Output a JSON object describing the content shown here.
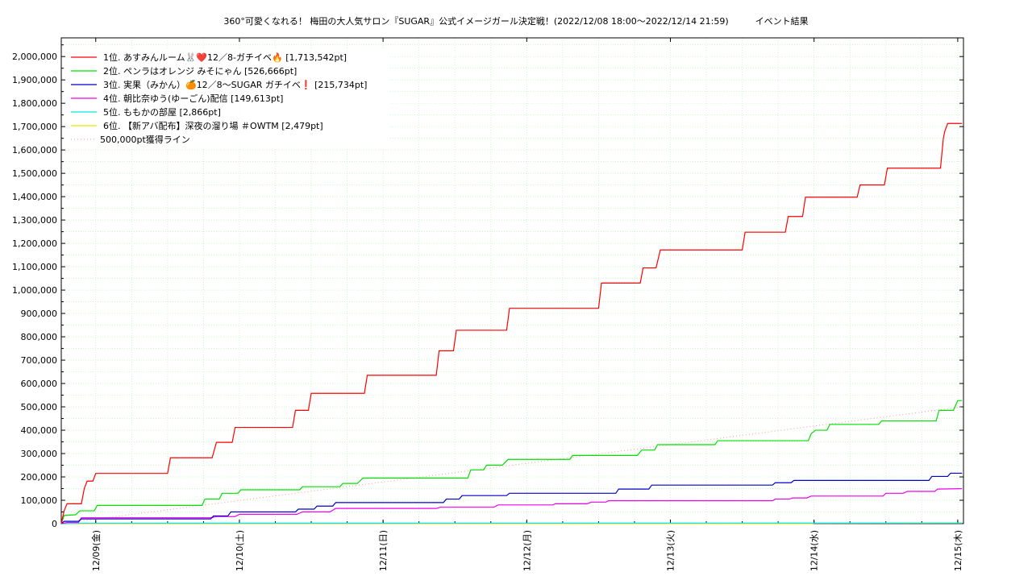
{
  "chart_data": {
    "type": "line",
    "title": "360°可愛くなれる！ 梅田の大人気サロン『SUGAR』公式イメージガール決定戦！(2022/12/08 18:00～2022/12/14 21:59)　　　イベント結果",
    "xlabel": "",
    "ylabel": "",
    "ylim": [
      0,
      2080000
    ],
    "xlim": [
      -0.24,
      6.04
    ],
    "grid": true,
    "legend_position": "top-left",
    "y_ticks": [
      0,
      100000,
      200000,
      300000,
      400000,
      500000,
      600000,
      700000,
      800000,
      900000,
      1000000,
      1100000,
      1200000,
      1300000,
      1400000,
      1500000,
      1600000,
      1700000,
      1800000,
      1900000,
      2000000
    ],
    "y_tick_labels": [
      "0",
      "100,000",
      "200,000",
      "300,000",
      "400,000",
      "500,000",
      "600,000",
      "700,000",
      "800,000",
      "900,000",
      "1,000,000",
      "1,100,000",
      "1,200,000",
      "1,300,000",
      "1,400,000",
      "1,500,000",
      "1,600,000",
      "1,700,000",
      "1,800,000",
      "1,900,000",
      "2,000,000"
    ],
    "x_ticks": [
      0,
      1,
      2,
      3,
      4,
      5,
      6
    ],
    "x_tick_labels": [
      "12/09(金)",
      "12/10(土)",
      "12/11(日)",
      "12/12(月)",
      "12/13(火)",
      "12/14(水)",
      "12/15(木)"
    ],
    "series": [
      {
        "name": "1位. あすみんルーム🐰❤️12／8-ガチイベ🔥 [1,713,542pt]",
        "color": "#ff0000",
        "points": [
          [
            -0.24,
            0
          ],
          [
            -0.22,
            55000
          ],
          [
            -0.2,
            85000
          ],
          [
            -0.1,
            85000
          ],
          [
            -0.08,
            150000
          ],
          [
            -0.06,
            182000
          ],
          [
            -0.02,
            182000
          ],
          [
            0.0,
            215000
          ],
          [
            0.5,
            215000
          ],
          [
            0.52,
            282000
          ],
          [
            0.81,
            282000
          ],
          [
            0.84,
            348000
          ],
          [
            0.95,
            348000
          ],
          [
            0.97,
            412000
          ],
          [
            1.37,
            412000
          ],
          [
            1.39,
            485000
          ],
          [
            1.48,
            485000
          ],
          [
            1.5,
            558000
          ],
          [
            1.87,
            558000
          ],
          [
            1.89,
            635000
          ],
          [
            2.37,
            635000
          ],
          [
            2.39,
            740000
          ],
          [
            2.49,
            740000
          ],
          [
            2.51,
            828000
          ],
          [
            2.86,
            828000
          ],
          [
            2.88,
            922000
          ],
          [
            3.5,
            922000
          ],
          [
            3.52,
            1030000
          ],
          [
            3.79,
            1030000
          ],
          [
            3.81,
            1095000
          ],
          [
            3.9,
            1095000
          ],
          [
            3.93,
            1172000
          ],
          [
            4.5,
            1172000
          ],
          [
            4.52,
            1248000
          ],
          [
            4.8,
            1248000
          ],
          [
            4.82,
            1315000
          ],
          [
            4.92,
            1315000
          ],
          [
            4.94,
            1398000
          ],
          [
            5.3,
            1398000
          ],
          [
            5.32,
            1450000
          ],
          [
            5.49,
            1450000
          ],
          [
            5.51,
            1522000
          ],
          [
            5.88,
            1522000
          ],
          [
            5.9,
            1650000
          ],
          [
            5.91,
            1680000
          ],
          [
            5.93,
            1713542
          ],
          [
            6.03,
            1713542
          ]
        ]
      },
      {
        "name": "2位. ペンラはオレンジ みそにゃん [526,666pt]",
        "color": "#00e000",
        "points": [
          [
            -0.24,
            0
          ],
          [
            -0.22,
            35000
          ],
          [
            -0.14,
            38000
          ],
          [
            -0.11,
            55000
          ],
          [
            -0.01,
            55000
          ],
          [
            0.01,
            78000
          ],
          [
            0.74,
            78000
          ],
          [
            0.76,
            105000
          ],
          [
            0.86,
            105000
          ],
          [
            0.88,
            130000
          ],
          [
            0.99,
            130000
          ],
          [
            1.01,
            145000
          ],
          [
            1.42,
            145000
          ],
          [
            1.44,
            158000
          ],
          [
            1.7,
            158000
          ],
          [
            1.72,
            172000
          ],
          [
            1.82,
            172000
          ],
          [
            1.86,
            195000
          ],
          [
            2.59,
            195000
          ],
          [
            2.61,
            230000
          ],
          [
            2.7,
            230000
          ],
          [
            2.72,
            250000
          ],
          [
            2.83,
            250000
          ],
          [
            2.87,
            275000
          ],
          [
            3.3,
            275000
          ],
          [
            3.32,
            292000
          ],
          [
            3.77,
            292000
          ],
          [
            3.8,
            315000
          ],
          [
            3.89,
            315000
          ],
          [
            3.91,
            338000
          ],
          [
            4.31,
            338000
          ],
          [
            4.33,
            355000
          ],
          [
            4.96,
            355000
          ],
          [
            4.98,
            385000
          ],
          [
            5.01,
            400000
          ],
          [
            5.09,
            400000
          ],
          [
            5.11,
            425000
          ],
          [
            5.45,
            425000
          ],
          [
            5.47,
            440000
          ],
          [
            5.85,
            440000
          ],
          [
            5.87,
            485000
          ],
          [
            5.97,
            485000
          ],
          [
            6.0,
            526666
          ],
          [
            6.03,
            526666
          ]
        ]
      },
      {
        "name": "3位. 実果（みかん）🍊12／8〜SUGAR ガチイベ❗️ [215,734pt]",
        "color": "#0000cc",
        "points": [
          [
            -0.24,
            0
          ],
          [
            -0.22,
            10000
          ],
          [
            -0.12,
            10000
          ],
          [
            -0.1,
            20000
          ],
          [
            0.8,
            20000
          ],
          [
            0.82,
            33000
          ],
          [
            0.92,
            33000
          ],
          [
            0.94,
            50000
          ],
          [
            1.39,
            50000
          ],
          [
            1.41,
            62000
          ],
          [
            1.52,
            62000
          ],
          [
            1.54,
            75000
          ],
          [
            1.65,
            75000
          ],
          [
            1.67,
            90000
          ],
          [
            2.42,
            90000
          ],
          [
            2.44,
            105000
          ],
          [
            2.53,
            105000
          ],
          [
            2.55,
            120000
          ],
          [
            2.86,
            120000
          ],
          [
            2.88,
            130000
          ],
          [
            3.62,
            130000
          ],
          [
            3.64,
            148000
          ],
          [
            3.85,
            148000
          ],
          [
            3.87,
            165000
          ],
          [
            4.71,
            165000
          ],
          [
            4.73,
            175000
          ],
          [
            4.84,
            175000
          ],
          [
            4.86,
            185000
          ],
          [
            5.8,
            185000
          ],
          [
            5.82,
            202000
          ],
          [
            5.93,
            202000
          ],
          [
            5.95,
            215734
          ],
          [
            6.03,
            215734
          ]
        ]
      },
      {
        "name": "4位. 朝比奈ゆう(ゆーごん)配信 [149,613pt]",
        "color": "#ee00ee",
        "points": [
          [
            -0.24,
            0
          ],
          [
            -0.2,
            5000
          ],
          [
            -0.12,
            5000
          ],
          [
            -0.1,
            25000
          ],
          [
            0.8,
            25000
          ],
          [
            0.84,
            30000
          ],
          [
            0.97,
            30000
          ],
          [
            1.0,
            40000
          ],
          [
            1.4,
            40000
          ],
          [
            1.44,
            50000
          ],
          [
            1.63,
            50000
          ],
          [
            1.67,
            65000
          ],
          [
            2.37,
            65000
          ],
          [
            2.4,
            70000
          ],
          [
            2.77,
            70000
          ],
          [
            2.8,
            80000
          ],
          [
            3.18,
            80000
          ],
          [
            3.2,
            85000
          ],
          [
            3.42,
            85000
          ],
          [
            3.45,
            92000
          ],
          [
            3.55,
            92000
          ],
          [
            3.57,
            98000
          ],
          [
            4.71,
            98000
          ],
          [
            4.73,
            105000
          ],
          [
            4.83,
            105000
          ],
          [
            4.85,
            110000
          ],
          [
            4.95,
            110000
          ],
          [
            4.98,
            118000
          ],
          [
            5.48,
            118000
          ],
          [
            5.5,
            130000
          ],
          [
            5.62,
            130000
          ],
          [
            5.65,
            138000
          ],
          [
            5.84,
            138000
          ],
          [
            5.86,
            148000
          ],
          [
            6.03,
            149613
          ]
        ]
      },
      {
        "name": "5位. ももかの部屋 [2,866pt]",
        "color": "#00e8e8",
        "points": [
          [
            -0.24,
            0
          ],
          [
            -0.1,
            1500
          ],
          [
            2.0,
            1800
          ],
          [
            4.0,
            2200
          ],
          [
            5.5,
            2600
          ],
          [
            6.03,
            2866
          ]
        ]
      },
      {
        "name": "6位. 【新アバ配布】深夜の溜り場 ＃OWTM [2,479pt]",
        "color": "#e8e800",
        "points": [
          [
            -0.24,
            0
          ],
          [
            4.98,
            0
          ],
          [
            5.0,
            1500
          ],
          [
            6.03,
            2479
          ]
        ]
      }
    ],
    "reference_line": {
      "name": "500,000pt獲得ライン",
      "color": "#ff9999",
      "points": [
        [
          -0.24,
          0
        ],
        [
          6.03,
          500000
        ]
      ]
    }
  }
}
